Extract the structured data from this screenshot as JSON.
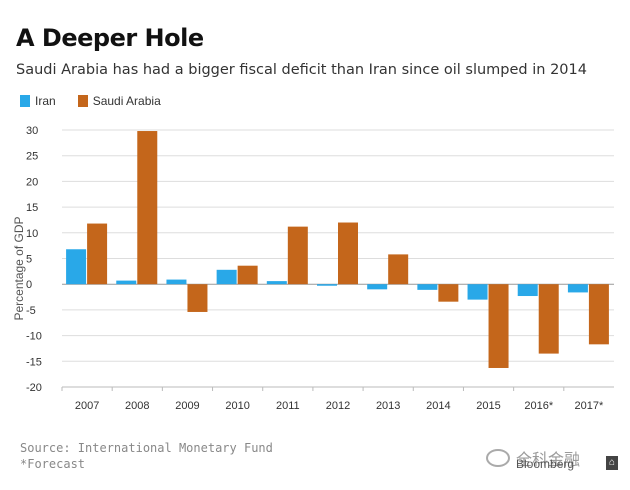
{
  "title": "A Deeper Hole",
  "subtitle": "Saudi Arabia has had a bigger fiscal deficit than Iran since oil slumped in 2014",
  "footer": {
    "source": "Source: International Monetary Fund",
    "note": "*Forecast",
    "brand": "Bloomberg",
    "watermark": "全科金融"
  },
  "colors": {
    "iran": "#29a8e8",
    "saudi": "#c4661b",
    "grid": "#dddddd",
    "zero": "#999999",
    "text": "#333333"
  },
  "chart_data": {
    "type": "bar",
    "title": "A Deeper Hole",
    "subtitle": "Saudi Arabia has had a bigger fiscal deficit than Iran since oil slumped in 2014",
    "xlabel": "",
    "ylabel": "Percentage of GDP",
    "ylim": [
      -20,
      30
    ],
    "yticks": [
      30,
      25,
      20,
      15,
      10,
      5,
      0,
      -5,
      -10,
      -15,
      -20
    ],
    "grid": true,
    "legend_position": "top-left",
    "categories": [
      "2007",
      "2008",
      "2009",
      "2010",
      "2011",
      "2012",
      "2013",
      "2014",
      "2015",
      "2016*",
      "2017*"
    ],
    "series": [
      {
        "name": "Iran",
        "values": [
          6.8,
          0.7,
          0.9,
          2.8,
          0.6,
          -0.3,
          -1.0,
          -1.1,
          -3.0,
          -2.3,
          -1.6
        ]
      },
      {
        "name": "Saudi Arabia",
        "values": [
          11.8,
          29.8,
          -5.4,
          3.6,
          11.2,
          12.0,
          5.8,
          -3.4,
          -16.3,
          -13.5,
          -11.7
        ]
      }
    ]
  }
}
